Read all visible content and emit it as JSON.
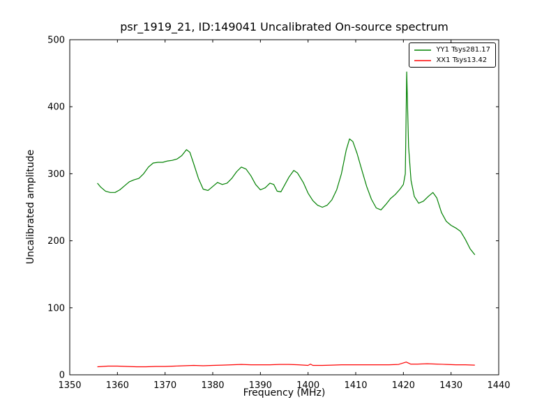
{
  "chart_data": {
    "type": "line",
    "title": "psr_1919_21, ID:149041 Uncalibrated On-source spectrum",
    "xlabel": "Frequency (MHz)",
    "ylabel": "Uncalibrated amplitude",
    "xlim": [
      1350,
      1440
    ],
    "ylim": [
      0,
      500
    ],
    "xticks": [
      1350,
      1360,
      1370,
      1380,
      1390,
      1400,
      1410,
      1420,
      1430,
      1440
    ],
    "yticks": [
      0,
      100,
      200,
      300,
      400,
      500
    ],
    "grid": false,
    "legend_position": "upper right",
    "series": [
      {
        "name": "YY1 Tsys281.17",
        "color": "#008000",
        "points": [
          [
            1355.8,
            286
          ],
          [
            1356.5,
            280
          ],
          [
            1357.5,
            274
          ],
          [
            1358.5,
            272
          ],
          [
            1359.5,
            272
          ],
          [
            1360.5,
            276
          ],
          [
            1361.5,
            282
          ],
          [
            1362.5,
            288
          ],
          [
            1363.5,
            291
          ],
          [
            1364.5,
            293
          ],
          [
            1365.5,
            300
          ],
          [
            1366.5,
            310
          ],
          [
            1367.5,
            316
          ],
          [
            1368.5,
            317
          ],
          [
            1369.5,
            317
          ],
          [
            1370.5,
            319
          ],
          [
            1371.5,
            320
          ],
          [
            1372.5,
            322
          ],
          [
            1373.5,
            327
          ],
          [
            1374.5,
            336
          ],
          [
            1375.2,
            332
          ],
          [
            1376,
            315
          ],
          [
            1377,
            293
          ],
          [
            1378,
            277
          ],
          [
            1379,
            275
          ],
          [
            1380,
            281
          ],
          [
            1381,
            287
          ],
          [
            1382,
            284
          ],
          [
            1383,
            286
          ],
          [
            1384,
            293
          ],
          [
            1385,
            303
          ],
          [
            1386,
            310
          ],
          [
            1387,
            307
          ],
          [
            1388,
            297
          ],
          [
            1389,
            284
          ],
          [
            1390,
            276
          ],
          [
            1391,
            279
          ],
          [
            1392,
            286
          ],
          [
            1392.8,
            284
          ],
          [
            1393.5,
            274
          ],
          [
            1394.3,
            273
          ],
          [
            1395,
            282
          ],
          [
            1396,
            295
          ],
          [
            1397,
            305
          ],
          [
            1397.8,
            301
          ],
          [
            1399,
            287
          ],
          [
            1400,
            271
          ],
          [
            1401,
            260
          ],
          [
            1402,
            253
          ],
          [
            1403,
            250
          ],
          [
            1404,
            253
          ],
          [
            1405,
            261
          ],
          [
            1406,
            276
          ],
          [
            1407,
            300
          ],
          [
            1408,
            335
          ],
          [
            1408.7,
            352
          ],
          [
            1409.4,
            348
          ],
          [
            1410.3,
            330
          ],
          [
            1411.3,
            305
          ],
          [
            1412.3,
            281
          ],
          [
            1413.3,
            262
          ],
          [
            1414.3,
            249
          ],
          [
            1415.3,
            246
          ],
          [
            1416.3,
            254
          ],
          [
            1417.3,
            263
          ],
          [
            1418.3,
            269
          ],
          [
            1419.3,
            277
          ],
          [
            1420,
            284
          ],
          [
            1420.4,
            300
          ],
          [
            1420.7,
            452
          ],
          [
            1421.1,
            340
          ],
          [
            1421.6,
            290
          ],
          [
            1422.3,
            266
          ],
          [
            1423.2,
            256
          ],
          [
            1424.2,
            259
          ],
          [
            1425.2,
            266
          ],
          [
            1426.2,
            272
          ],
          [
            1427,
            264
          ],
          [
            1428,
            242
          ],
          [
            1429,
            229
          ],
          [
            1430,
            223
          ],
          [
            1431,
            219
          ],
          [
            1432,
            214
          ],
          [
            1433,
            202
          ],
          [
            1434,
            188
          ],
          [
            1435,
            179
          ]
        ]
      },
      {
        "name": "XX1 Tsys13.42",
        "color": "#ff0000",
        "points": [
          [
            1355.8,
            12
          ],
          [
            1358,
            13
          ],
          [
            1360,
            13
          ],
          [
            1362,
            12.5
          ],
          [
            1364,
            12
          ],
          [
            1366,
            12
          ],
          [
            1368,
            12.5
          ],
          [
            1370,
            12.5
          ],
          [
            1372,
            13
          ],
          [
            1374,
            13.5
          ],
          [
            1376,
            14
          ],
          [
            1378,
            13.5
          ],
          [
            1380,
            14
          ],
          [
            1382,
            14.5
          ],
          [
            1384,
            15
          ],
          [
            1386,
            15.5
          ],
          [
            1388,
            15
          ],
          [
            1390,
            15
          ],
          [
            1392,
            15
          ],
          [
            1394,
            15.5
          ],
          [
            1396,
            15.5
          ],
          [
            1398,
            15
          ],
          [
            1400,
            14
          ],
          [
            1400.5,
            16
          ],
          [
            1401,
            14
          ],
          [
            1403,
            14
          ],
          [
            1405,
            14.5
          ],
          [
            1407,
            15
          ],
          [
            1409,
            15
          ],
          [
            1411,
            15
          ],
          [
            1413,
            15
          ],
          [
            1415,
            15
          ],
          [
            1417,
            15
          ],
          [
            1419,
            15.5
          ],
          [
            1420.6,
            19
          ],
          [
            1421.5,
            16
          ],
          [
            1423,
            16
          ],
          [
            1425,
            16.5
          ],
          [
            1427,
            16
          ],
          [
            1429,
            15.5
          ],
          [
            1431,
            15
          ],
          [
            1433,
            15
          ],
          [
            1435,
            14.5
          ]
        ]
      }
    ]
  }
}
